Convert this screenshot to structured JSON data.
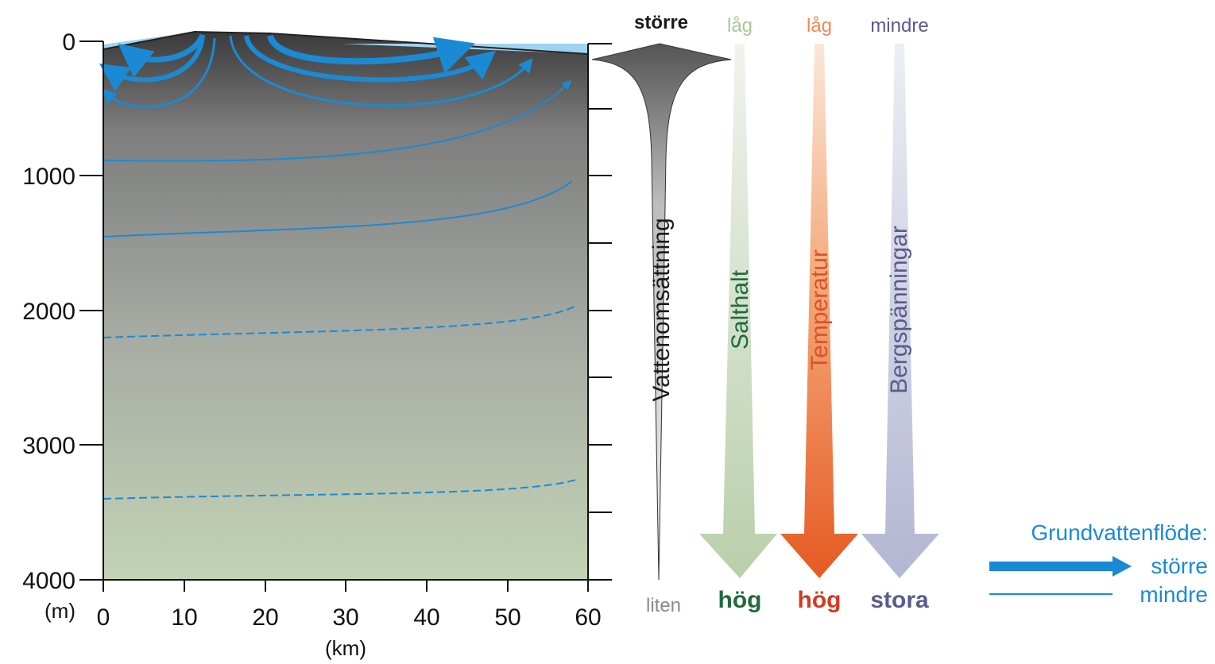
{
  "axes": {
    "y_ticks": [
      "0",
      "1000",
      "2000",
      "3000",
      "4000"
    ],
    "y_unit": "(m)",
    "x_ticks": [
      "0",
      "10",
      "20",
      "30",
      "40",
      "50",
      "60"
    ],
    "x_unit": "(km)"
  },
  "indicators": [
    {
      "name": "Vattenomsättning",
      "top": "större",
      "bottom": "liten",
      "color": "#1a1a1a",
      "top_color": "#1a1a1a",
      "bottom_color": "#8a8a8a"
    },
    {
      "name": "Salthalt",
      "top": "låg",
      "bottom": "hög",
      "color": "#1e6b3c",
      "top_color": "#a9c79a",
      "bottom_color": "#1e6b3c"
    },
    {
      "name": "Temperatur",
      "top": "låg",
      "bottom": "hög",
      "color": "#d9532a",
      "top_color": "#f08a50",
      "bottom_color": "#d23a22"
    },
    {
      "name": "Bergspänningar",
      "top": "mindre",
      "bottom": "stora",
      "color": "#5a5a8c",
      "top_color": "#5a5a8c",
      "bottom_color": "#5a5a8c"
    }
  ],
  "legend": {
    "title": "Grundvattenflöde:",
    "larger": "större",
    "smaller": "mindre",
    "color": "#1a8ad4"
  }
}
